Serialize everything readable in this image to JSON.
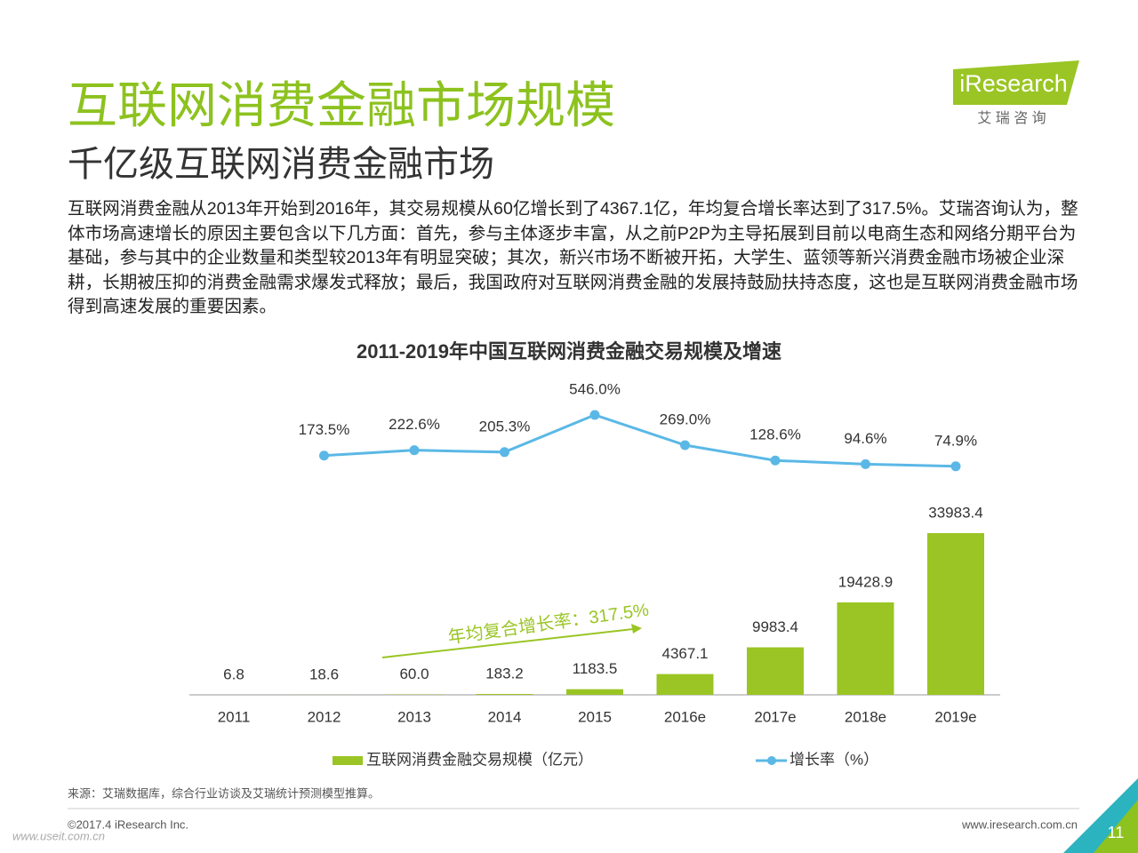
{
  "header": {
    "title": "互联网消费金融市场规模",
    "subtitle": "千亿级互联网消费金融市场",
    "paragraph": "互联网消费金融从2013年开始到2016年，其交易规模从60亿增长到了4367.1亿，年均复合增长率达到了317.5%。艾瑞咨询认为，整体市场高速增长的原因主要包含以下几方面：首先，参与主体逐步丰富，从之前P2P为主导拓展到目前以电商生态和网络分期平台为基础，参与其中的企业数量和类型较2013年有明显突破；其次，新兴市场不断被开拓，大学生、蓝领等新兴消费金融市场被企业深耕，长期被压抑的消费金融需求爆发式释放；最后，我国政府对互联网消费金融的发展持鼓励扶持态度，这也是互联网消费金融市场得到高速发展的重要因素。"
  },
  "logo": {
    "name": "iResearch",
    "tagline": "艾 瑞 咨 询"
  },
  "chart_data": {
    "type": "bar",
    "title": "2011-2019年中国互联网消费金融交易规模及增速",
    "categories": [
      "2011",
      "2012",
      "2013",
      "2014",
      "2015",
      "2016e",
      "2017e",
      "2018e",
      "2019e"
    ],
    "series": [
      {
        "name": "互联网消费金融交易规模（亿元）",
        "type": "bar",
        "color": "#9ac524",
        "values": [
          6.8,
          18.6,
          60.0,
          183.2,
          1183.5,
          4367.1,
          9983.4,
          19428.9,
          33983.4
        ],
        "value_labels": [
          "6.8",
          "18.6",
          "60.0",
          "183.2",
          "1183.5",
          "4367.1",
          "9983.4",
          "19428.9",
          "33983.4"
        ]
      },
      {
        "name": "增长率（%）",
        "type": "line",
        "color": "#5bb8e6",
        "values": [
          null,
          173.5,
          222.6,
          205.3,
          546.0,
          269.0,
          128.6,
          94.6,
          74.9
        ],
        "value_labels": [
          null,
          "173.5%",
          "222.6%",
          "205.3%",
          "546.0%",
          "269.0%",
          "128.6%",
          "94.6%",
          "74.9%"
        ]
      }
    ],
    "annotation": "年均复合增长率：317.5%"
  },
  "footer": {
    "source": "来源：艾瑞数据库，综合行业访谈及艾瑞统计预测模型推算。",
    "copyright": "©2017.4 iResearch Inc.",
    "website": "www.iresearch.com.cn",
    "page": "11",
    "watermark": "www.useit.com.cn"
  }
}
